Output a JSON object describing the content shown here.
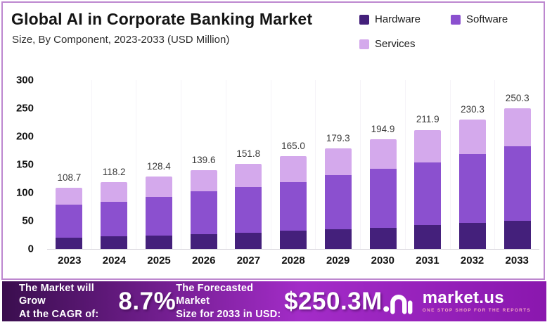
{
  "header": {
    "title": "Global AI in Corporate Banking Market",
    "subtitle": "Size, By Component, 2023-2033 (USD Million)"
  },
  "legend": [
    {
      "label": "Hardware",
      "color": "#44207b"
    },
    {
      "label": "Software",
      "color": "#8b50cf"
    },
    {
      "label": "Services",
      "color": "#d4a9ec"
    }
  ],
  "chart_data": {
    "type": "bar",
    "stacked": true,
    "title": "Global AI in Corporate Banking Market",
    "subtitle": "Size, By Component, 2023-2033 (USD Million)",
    "xlabel": "",
    "ylabel": "USD Million",
    "ylim": [
      0,
      300
    ],
    "yticks": [
      0,
      50,
      100,
      150,
      200,
      250,
      300
    ],
    "grid": "none",
    "legend_position": "top-right",
    "categories": [
      "2023",
      "2024",
      "2025",
      "2026",
      "2027",
      "2028",
      "2029",
      "2030",
      "2031",
      "2032",
      "2033"
    ],
    "series": [
      {
        "name": "Hardware",
        "color": "#44207b",
        "values": [
          20.5,
          22.5,
          24.0,
          26.5,
          28.5,
          32.0,
          35.0,
          37.7,
          42.3,
          45.8,
          50.0
        ]
      },
      {
        "name": "Software",
        "color": "#8b50cf",
        "values": [
          58.5,
          61.5,
          68.5,
          76.5,
          82.0,
          87.0,
          96.8,
          105.1,
          111.5,
          122.8,
          132.2
        ]
      },
      {
        "name": "Services",
        "color": "#d4a9ec",
        "values": [
          29.7,
          34.2,
          35.9,
          36.6,
          41.3,
          46.0,
          47.5,
          52.1,
          58.1,
          61.7,
          68.1
        ]
      }
    ],
    "total_labels": [
      "108.7",
      "118.2",
      "128.4",
      "139.6",
      "151.8",
      "165.0",
      "179.3",
      "194.9",
      "211.9",
      "230.3",
      "250.3"
    ]
  },
  "footer": {
    "cagr_label_line1": "The Market will Grow",
    "cagr_label_line2": "At the CAGR of:",
    "cagr_value": "8.7%",
    "forecast_label_line1": "The Forecasted Market",
    "forecast_label_line2": "Size for 2033 in USD:",
    "forecast_value": "$250.3M",
    "brand_name": "market.us",
    "brand_tagline": "ONE STOP SHOP FOR THE REPORTS"
  },
  "colors": {
    "frame_border": "#bd87cf",
    "banner_gradient_left": "#3a0e4e",
    "banner_gradient_mid": "#a32cc8",
    "banner_gradient_right": "#8a17ae",
    "axis_text": "#101010",
    "data_label": "#3a3a3a"
  }
}
